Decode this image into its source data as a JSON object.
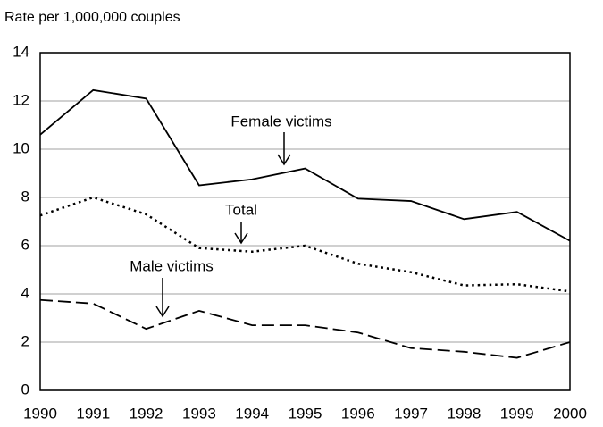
{
  "chart_data": {
    "type": "line",
    "y_label": "Rate per 1,000,000 couples",
    "categories": [
      "1990",
      "1991",
      "1992",
      "1993",
      "1994",
      "1995",
      "1996",
      "1997",
      "1998",
      "1999",
      "2000"
    ],
    "series": [
      {
        "name": "Female victims",
        "color": "#000000",
        "style": "solid",
        "values": [
          10.6,
          12.45,
          12.1,
          8.5,
          8.75,
          9.2,
          7.95,
          7.85,
          7.1,
          7.4,
          6.2
        ]
      },
      {
        "name": "Total",
        "color": "#000000",
        "style": "dotted",
        "values": [
          7.25,
          8.0,
          7.3,
          5.9,
          5.75,
          6.0,
          5.25,
          4.9,
          4.35,
          4.4,
          4.1
        ]
      },
      {
        "name": "Male victims",
        "color": "#000000",
        "style": "dashed",
        "values": [
          3.75,
          3.6,
          2.55,
          3.3,
          2.7,
          2.7,
          2.4,
          1.75,
          1.6,
          1.35,
          2.0
        ]
      }
    ],
    "ylim": [
      0,
      14
    ],
    "yticks": [
      0,
      2,
      4,
      6,
      8,
      10,
      12,
      14
    ],
    "grid": true
  }
}
